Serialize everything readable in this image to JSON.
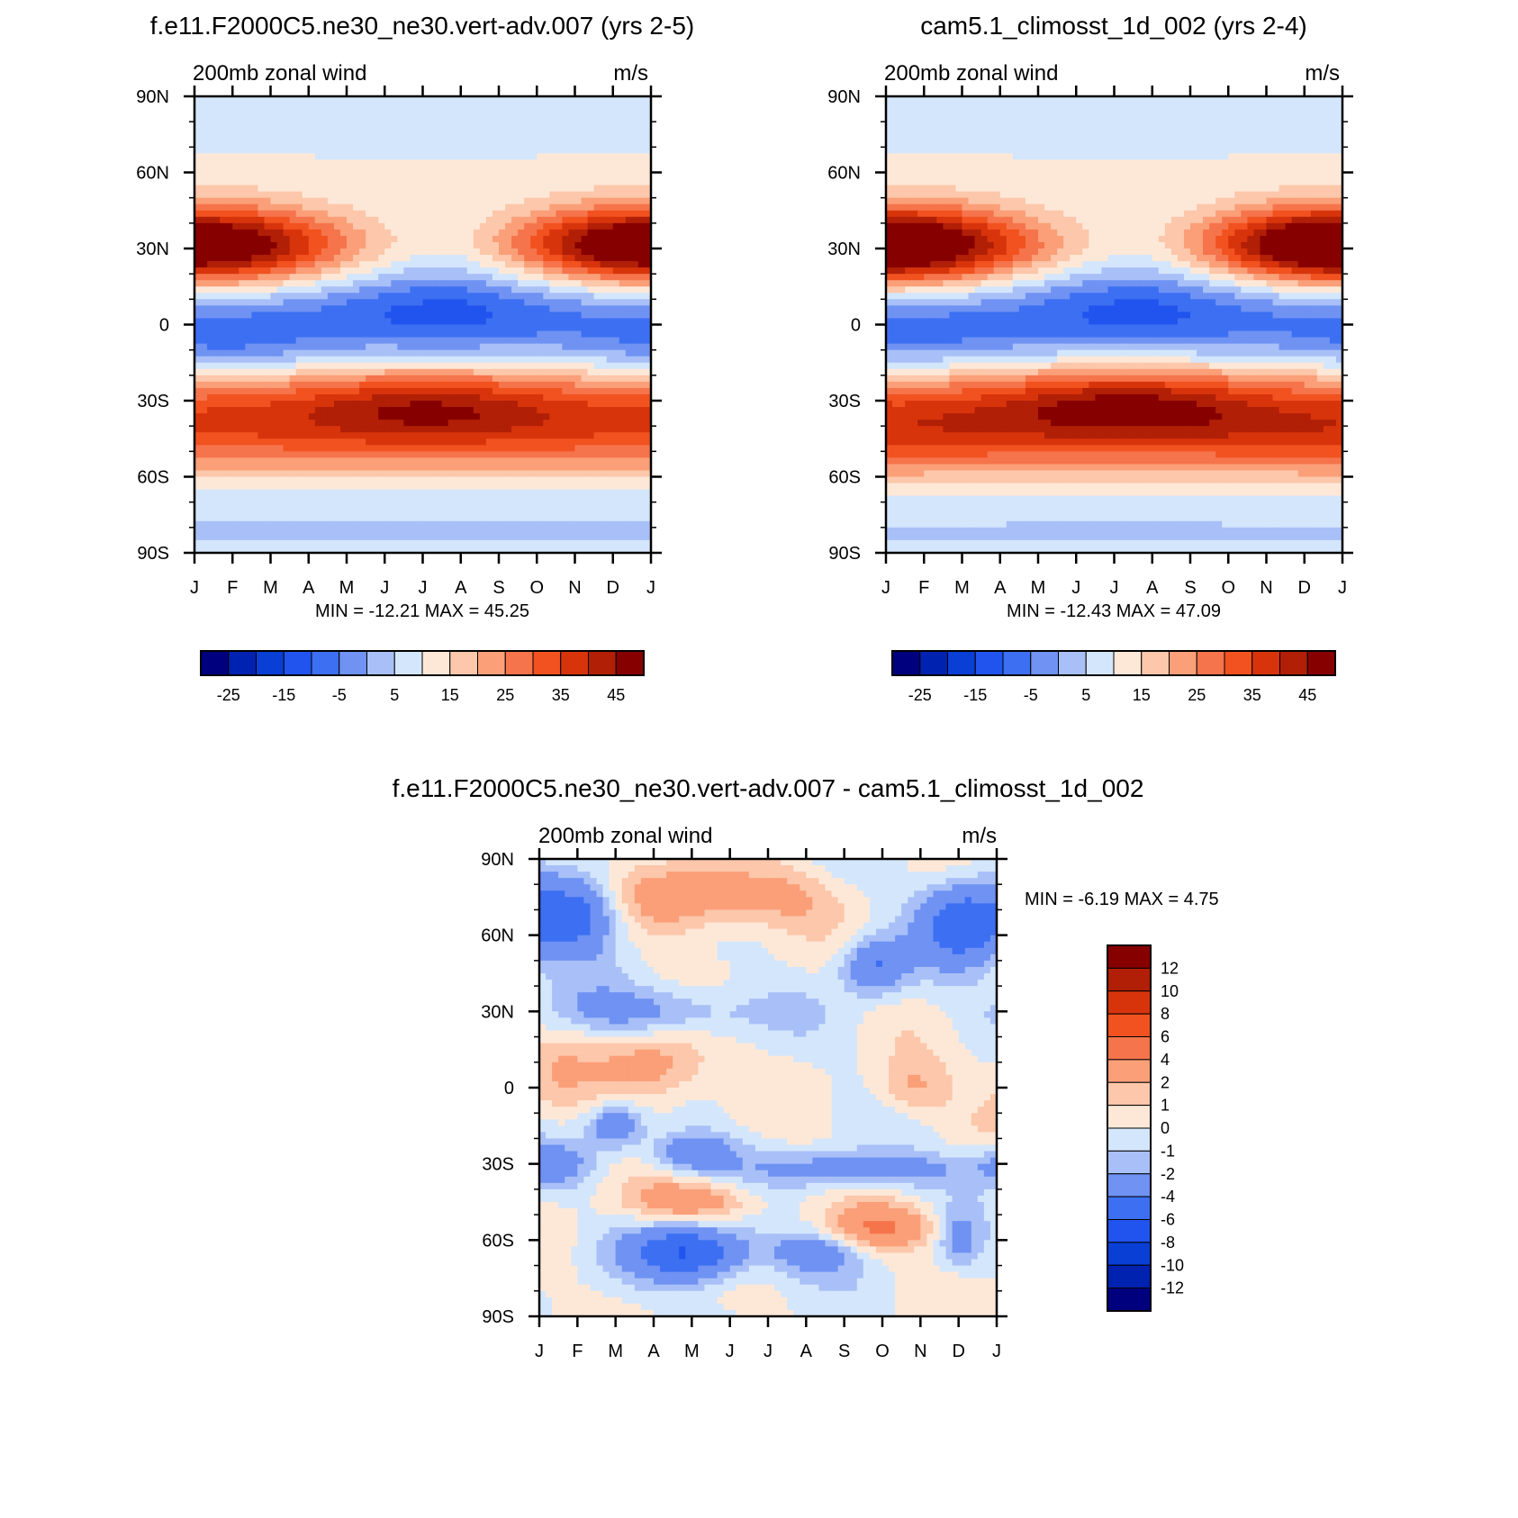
{
  "palette": {
    "wind": [
      "#00007f",
      "#0022b0",
      "#0a3fd6",
      "#2154ee",
      "#3d6ff2",
      "#6f92f3",
      "#a8c0f7",
      "#d4e6fb",
      "#fde8d8",
      "#fcc7aa",
      "#fa9f78",
      "#f6744b",
      "#f1521f",
      "#d8340c",
      "#b11f06",
      "#870000"
    ],
    "diff": [
      "#00007f",
      "#0022b0",
      "#0a3fd6",
      "#2154ee",
      "#3d6ff2",
      "#6f92f3",
      "#a8c0f7",
      "#d4e6fb",
      "#fde8d8",
      "#fcc7aa",
      "#fa9f78",
      "#f6744b",
      "#f1521f",
      "#d8340c",
      "#b11f06",
      "#870000"
    ]
  },
  "chart_data": [
    {
      "id": "panel-a",
      "type": "heatmap",
      "title": "f.e11.F2000C5.ne30_ne30.vert-adv.007 (yrs 2-5)",
      "left_label": "200mb zonal wind",
      "right_label": "m/s",
      "x_ticks": [
        "J",
        "F",
        "M",
        "A",
        "M",
        "J",
        "J",
        "A",
        "S",
        "O",
        "N",
        "D",
        "J"
      ],
      "y_ticks": [
        "90N",
        "60N",
        "30N",
        "0",
        "30S",
        "60S",
        "90S"
      ],
      "y_values": [
        90,
        60,
        30,
        0,
        -30,
        -60,
        -90
      ],
      "xlim": [
        0,
        12
      ],
      "ylim": [
        -90,
        90
      ],
      "stats_text": "MIN = -12.21 MAX =  45.25",
      "min": -12.21,
      "max": 45.25,
      "colorbar_levels": [
        -30,
        -25,
        -20,
        -15,
        -10,
        -5,
        0,
        5,
        10,
        15,
        20,
        25,
        30,
        35,
        40,
        45,
        50
      ],
      "colorbar_labels": [
        "-25",
        "-15",
        "-5",
        "5",
        "15",
        "25",
        "35",
        "45"
      ],
      "features": [
        {
          "lat": 30,
          "month": 1.0,
          "value": 44,
          "dlat": 11,
          "dmonth": 3.0
        },
        {
          "lat": 31,
          "month": 11.2,
          "value": 38,
          "dlat": 10,
          "dmonth": 2.2
        },
        {
          "lat": -31,
          "month": 6.1,
          "value": 45,
          "dlat": 10,
          "dmonth": 2.3
        },
        {
          "lat": -45,
          "month": 1.0,
          "value": 33,
          "dlat": 13,
          "dmonth": 3.2
        },
        {
          "lat": -45,
          "month": 11.0,
          "value": 33,
          "dlat": 13,
          "dmonth": 3.0
        },
        {
          "lat": 6,
          "month": 6.5,
          "value": -12,
          "dlat": 12,
          "dmonth": 2.3
        },
        {
          "lat": -8,
          "month": 0.8,
          "value": -6,
          "dlat": 9,
          "dmonth": 1.8
        }
      ]
    },
    {
      "id": "panel-b",
      "type": "heatmap",
      "title": "cam5.1_climosst_1d_002 (yrs 2-4)",
      "left_label": "200mb zonal wind",
      "right_label": "m/s",
      "x_ticks": [
        "J",
        "F",
        "M",
        "A",
        "M",
        "J",
        "J",
        "A",
        "S",
        "O",
        "N",
        "D",
        "J"
      ],
      "y_ticks": [
        "90N",
        "60N",
        "30N",
        "0",
        "30S",
        "60S",
        "90S"
      ],
      "y_values": [
        90,
        60,
        30,
        0,
        -30,
        -60,
        -90
      ],
      "xlim": [
        0,
        12
      ],
      "ylim": [
        -90,
        90
      ],
      "stats_text": "MIN = -12.43 MAX =  47.09",
      "min": -12.43,
      "max": 47.09,
      "colorbar_levels": [
        -30,
        -25,
        -20,
        -15,
        -10,
        -5,
        0,
        5,
        10,
        15,
        20,
        25,
        30,
        35,
        40,
        45,
        50
      ],
      "colorbar_labels": [
        "-25",
        "-15",
        "-5",
        "5",
        "15",
        "25",
        "35",
        "45"
      ],
      "features": [
        {
          "lat": 30,
          "month": 1.0,
          "value": 45,
          "dlat": 11,
          "dmonth": 3.0
        },
        {
          "lat": 31,
          "month": 11.3,
          "value": 42,
          "dlat": 10,
          "dmonth": 2.2
        },
        {
          "lat": -30,
          "month": 6.3,
          "value": 47,
          "dlat": 10,
          "dmonth": 2.4
        },
        {
          "lat": -48,
          "month": 1.0,
          "value": 33,
          "dlat": 12,
          "dmonth": 3.2
        },
        {
          "lat": -48,
          "month": 10.5,
          "value": 32,
          "dlat": 12,
          "dmonth": 3.0
        },
        {
          "lat": 6,
          "month": 6.6,
          "value": -12,
          "dlat": 12,
          "dmonth": 2.3
        },
        {
          "lat": -6,
          "month": 0.8,
          "value": -6,
          "dlat": 9,
          "dmonth": 1.8
        }
      ]
    },
    {
      "id": "panel-c",
      "type": "heatmap",
      "title": "f.e11.F2000C5.ne30_ne30.vert-adv.007 - cam5.1_climosst_1d_002",
      "left_label": "200mb zonal wind",
      "right_label": "m/s",
      "x_ticks": [
        "J",
        "F",
        "M",
        "A",
        "M",
        "J",
        "J",
        "A",
        "S",
        "O",
        "N",
        "D",
        "J"
      ],
      "y_ticks": [
        "90N",
        "60N",
        "30N",
        "0",
        "30S",
        "60S",
        "90S"
      ],
      "y_values": [
        90,
        60,
        30,
        0,
        -30,
        -60,
        -90
      ],
      "xlim": [
        0,
        12
      ],
      "ylim": [
        -90,
        90
      ],
      "stats_text": "MIN =  -6.19 MAX =   4.75",
      "min": -6.19,
      "max": 4.75,
      "colorbar_levels": [
        -14,
        -12,
        -10,
        -8,
        -6,
        -4,
        -2,
        -1,
        0,
        1,
        2,
        4,
        6,
        8,
        10,
        12,
        14
      ],
      "colorbar_labels": [
        "12",
        "10",
        "8",
        "6",
        "4",
        "2",
        "1",
        "0",
        "-1",
        "-2",
        "-4",
        "-6",
        "-8",
        "-10",
        "-12"
      ],
      "features": [
        {
          "lat": 68,
          "month": 1.0,
          "value": -5.0,
          "dlat": 11,
          "dmonth": 0.8
        },
        {
          "lat": 65,
          "month": 11.1,
          "value": -5.5,
          "dlat": 12,
          "dmonth": 0.8
        },
        {
          "lat": 75,
          "month": 4.0,
          "value": 3.0,
          "dlat": 10,
          "dmonth": 1.3
        },
        {
          "lat": 75,
          "month": 6.5,
          "value": 2.0,
          "dlat": 8,
          "dmonth": 1.0
        },
        {
          "lat": 48,
          "month": 8.8,
          "value": -4.0,
          "dlat": 8,
          "dmonth": 0.6
        },
        {
          "lat": 30,
          "month": 3.0,
          "value": -2.5,
          "dlat": 7,
          "dmonth": 2.0
        },
        {
          "lat": 8,
          "month": 3.0,
          "value": 2.5,
          "dlat": 10,
          "dmonth": 1.0
        },
        {
          "lat": 5,
          "month": 0.5,
          "value": 2.0,
          "dlat": 14,
          "dmonth": 0.7
        },
        {
          "lat": 0,
          "month": 9.8,
          "value": 2.0,
          "dlat": 8,
          "dmonth": 0.7
        },
        {
          "lat": -15,
          "month": 2.0,
          "value": -3.5,
          "dlat": 6,
          "dmonth": 0.5
        },
        {
          "lat": -26,
          "month": 4.0,
          "value": -3.5,
          "dlat": 6,
          "dmonth": 0.8
        },
        {
          "lat": -32,
          "month": 8.5,
          "value": -3.0,
          "dlat": 5,
          "dmonth": 1.8
        },
        {
          "lat": -30,
          "month": 0.3,
          "value": -3.5,
          "dlat": 6,
          "dmonth": 0.7
        },
        {
          "lat": -45,
          "month": 4.0,
          "value": 3.5,
          "dlat": 6,
          "dmonth": 1.2
        },
        {
          "lat": -55,
          "month": 9.0,
          "value": 4.5,
          "dlat": 6,
          "dmonth": 1.0
        },
        {
          "lat": -65,
          "month": 4.0,
          "value": -6.0,
          "dlat": 8,
          "dmonth": 1.1
        },
        {
          "lat": -65,
          "month": 7.2,
          "value": -3.5,
          "dlat": 6,
          "dmonth": 0.8
        },
        {
          "lat": -60,
          "month": 11.0,
          "value": -3.0,
          "dlat": 8,
          "dmonth": 0.4
        }
      ]
    }
  ]
}
